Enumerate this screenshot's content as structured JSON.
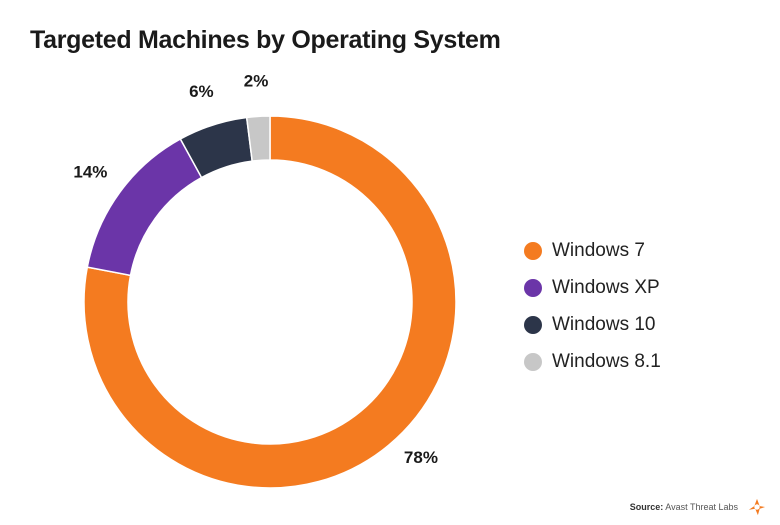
{
  "chart_data": {
    "type": "pie",
    "title": "Targeted Machines by Operating System",
    "categories": [
      "Windows 7",
      "Windows XP",
      "Windows 10",
      "Windows 8.1"
    ],
    "values": [
      78,
      14,
      6,
      2
    ],
    "labels": [
      "78%",
      "14%",
      "6%",
      "2%"
    ],
    "colors": [
      "#F47B20",
      "#6B35A8",
      "#2C3549",
      "#C7C7C7"
    ],
    "donut": true,
    "legend_position": "right"
  },
  "source": {
    "prefix": "Source:",
    "text": "Avast Threat Labs"
  },
  "logo_icon": "avast-logo-icon"
}
